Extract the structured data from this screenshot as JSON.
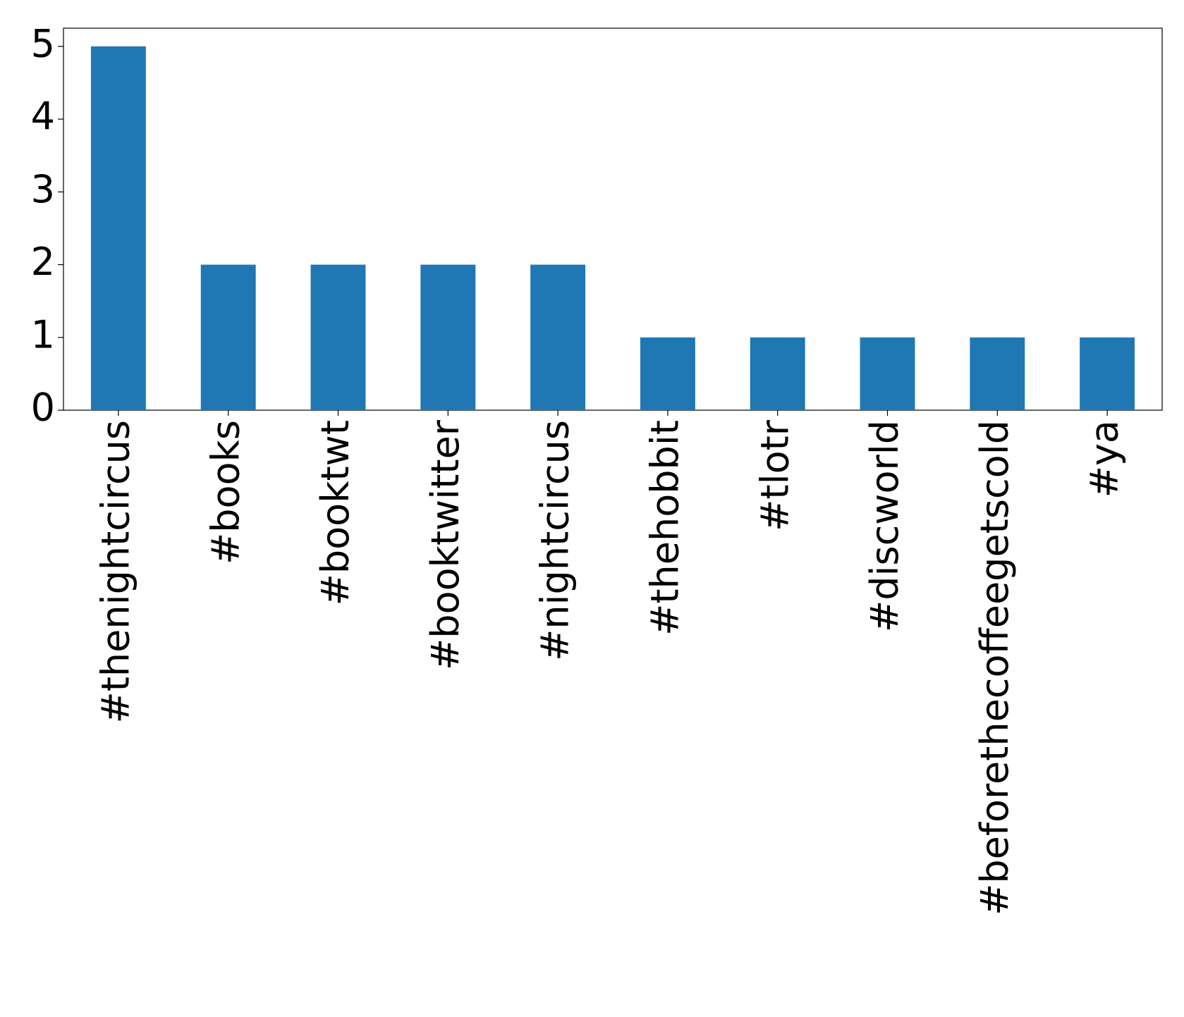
{
  "chart_data": {
    "type": "bar",
    "categories": [
      "#thenightcircus",
      "#books",
      "#booktwt",
      "#booktwitter",
      "#nightcircus",
      "#thehobbit",
      "#tlotr",
      "#discworld",
      "#beforethecoffeegetscold",
      "#ya"
    ],
    "values": [
      5,
      2,
      2,
      2,
      2,
      1,
      1,
      1,
      1,
      1
    ],
    "color": "#1f77b4",
    "ylim": [
      0,
      5.25
    ],
    "yticks": [
      0,
      1,
      2,
      3,
      4,
      5
    ],
    "grid": false
  }
}
